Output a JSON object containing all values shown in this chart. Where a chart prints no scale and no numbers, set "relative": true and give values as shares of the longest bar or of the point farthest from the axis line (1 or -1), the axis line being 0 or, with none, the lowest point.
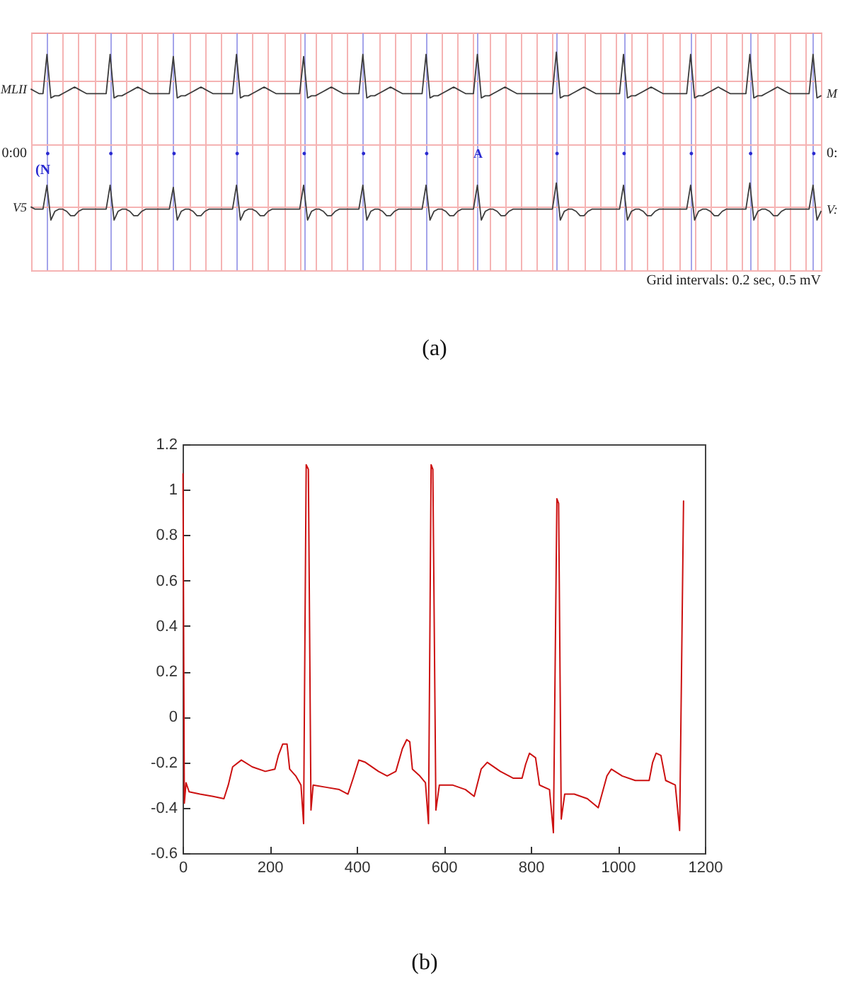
{
  "chart_data": [
    {
      "type": "line",
      "relative": true,
      "grid": true,
      "categories": [
        null,
        null,
        null,
        null,
        "•",
        null,
        null,
        null,
        null,
        null,
        null,
        null,
        null,
        null,
        null,
        null,
        null,
        null,
        null,
        null,
        "•",
        null,
        null,
        null,
        null,
        null,
        null,
        null,
        null,
        null,
        null,
        null,
        null,
        null,
        null,
        null,
        "•",
        null,
        null,
        null,
        null,
        null,
        null,
        null,
        null,
        null,
        null,
        null,
        null,
        null,
        null,
        null,
        "•",
        null,
        null,
        null,
        null,
        null,
        null,
        null,
        null,
        null,
        null,
        null,
        null,
        null,
        null,
        null,
        null,
        "•",
        null,
        null,
        null,
        null,
        null,
        null,
        null,
        null,
        null,
        null,
        null,
        null,
        null,
        null,
        "•",
        null,
        null,
        null,
        null,
        null,
        null,
        null,
        null,
        null,
        null,
        null,
        null,
        null,
        null,
        null,
        "•",
        null,
        null,
        null,
        null,
        null,
        null,
        null,
        null,
        null,
        null,
        null,
        null,
        "A",
        null,
        null,
        null,
        null,
        null,
        null,
        null,
        null,
        null,
        null,
        null,
        null,
        null,
        null,
        null,
        null,
        null,
        null,
        null,
        "•",
        null,
        null,
        null,
        null,
        null,
        null,
        null,
        null,
        null,
        null,
        null,
        null,
        null,
        null,
        null,
        null,
        "•",
        null,
        null,
        null,
        null,
        null,
        null,
        null,
        null,
        null,
        null,
        null,
        null,
        null,
        null,
        null,
        null,
        "•",
        null,
        null,
        null,
        null,
        null,
        null,
        null,
        null,
        null,
        null,
        null,
        null,
        null,
        null,
        "•",
        null,
        null,
        null,
        null,
        null,
        null,
        null,
        null,
        null,
        null,
        null,
        null,
        null,
        null,
        null,
        "•",
        null,
        null
      ],
      "series": [
        {
          "name": "MLII",
          "color": "#3c3c3c",
          "values": [
            0.83,
            0.82,
            0.81,
            0.81,
            0.99,
            0.79,
            0.8,
            0.8,
            0.81,
            0.82,
            0.83,
            0.84,
            0.83,
            0.82,
            0.81,
            0.81,
            0.81,
            0.81,
            0.81,
            0.81,
            0.99,
            0.79,
            0.8,
            0.8,
            0.81,
            0.82,
            0.83,
            0.84,
            0.83,
            0.82,
            0.81,
            0.81,
            0.81,
            0.81,
            0.81,
            0.81,
            0.98,
            0.79,
            0.8,
            0.8,
            0.81,
            0.82,
            0.83,
            0.84,
            0.83,
            0.82,
            0.81,
            0.81,
            0.81,
            0.81,
            0.81,
            0.81,
            0.99,
            0.79,
            0.8,
            0.8,
            0.81,
            0.82,
            0.83,
            0.84,
            0.83,
            0.82,
            0.81,
            0.81,
            0.81,
            0.81,
            0.81,
            0.81,
            0.81,
            0.98,
            0.79,
            0.8,
            0.8,
            0.81,
            0.82,
            0.83,
            0.84,
            0.83,
            0.82,
            0.81,
            0.81,
            0.81,
            0.81,
            0.81,
            0.99,
            0.79,
            0.8,
            0.8,
            0.81,
            0.82,
            0.83,
            0.84,
            0.83,
            0.82,
            0.81,
            0.81,
            0.81,
            0.81,
            0.81,
            0.81,
            0.99,
            0.79,
            0.8,
            0.8,
            0.81,
            0.82,
            0.83,
            0.84,
            0.83,
            0.82,
            0.81,
            0.81,
            0.81,
            0.99,
            0.79,
            0.8,
            0.8,
            0.81,
            0.82,
            0.83,
            0.84,
            0.83,
            0.82,
            0.81,
            0.81,
            0.81,
            0.81,
            0.81,
            0.81,
            0.81,
            0.81,
            0.81,
            0.81,
            1.0,
            0.79,
            0.8,
            0.8,
            0.81,
            0.82,
            0.83,
            0.84,
            0.83,
            0.82,
            0.81,
            0.81,
            0.81,
            0.81,
            0.81,
            0.81,
            0.81,
            0.99,
            0.79,
            0.8,
            0.8,
            0.81,
            0.82,
            0.83,
            0.84,
            0.83,
            0.82,
            0.81,
            0.81,
            0.81,
            0.81,
            0.81,
            0.81,
            0.81,
            0.99,
            0.79,
            0.8,
            0.8,
            0.81,
            0.82,
            0.83,
            0.84,
            0.83,
            0.82,
            0.81,
            0.81,
            0.81,
            0.81,
            0.81,
            0.99,
            0.79,
            0.8,
            0.8,
            0.81,
            0.82,
            0.83,
            0.84,
            0.83,
            0.82,
            0.81,
            0.81,
            0.81,
            0.81,
            0.81,
            0.81,
            0.99,
            0.79,
            0.8
          ]
        },
        {
          "name": "V5",
          "color": "#3c3c3c",
          "values": [
            0.29,
            0.28,
            0.28,
            0.28,
            0.39,
            0.23,
            0.27,
            0.28,
            0.28,
            0.27,
            0.25,
            0.25,
            0.27,
            0.28,
            0.28,
            0.28,
            0.28,
            0.28,
            0.28,
            0.28,
            0.39,
            0.23,
            0.27,
            0.28,
            0.28,
            0.27,
            0.25,
            0.25,
            0.27,
            0.28,
            0.28,
            0.28,
            0.28,
            0.28,
            0.28,
            0.28,
            0.38,
            0.23,
            0.27,
            0.28,
            0.28,
            0.27,
            0.25,
            0.25,
            0.27,
            0.28,
            0.28,
            0.28,
            0.28,
            0.28,
            0.28,
            0.28,
            0.39,
            0.23,
            0.27,
            0.28,
            0.28,
            0.27,
            0.25,
            0.25,
            0.27,
            0.28,
            0.28,
            0.28,
            0.28,
            0.28,
            0.28,
            0.28,
            0.28,
            0.39,
            0.23,
            0.27,
            0.28,
            0.28,
            0.27,
            0.25,
            0.25,
            0.27,
            0.28,
            0.28,
            0.28,
            0.28,
            0.28,
            0.28,
            0.39,
            0.23,
            0.27,
            0.28,
            0.28,
            0.27,
            0.25,
            0.25,
            0.27,
            0.28,
            0.28,
            0.28,
            0.28,
            0.28,
            0.28,
            0.28,
            0.39,
            0.23,
            0.27,
            0.28,
            0.28,
            0.27,
            0.25,
            0.25,
            0.27,
            0.28,
            0.28,
            0.28,
            0.28,
            0.39,
            0.23,
            0.27,
            0.28,
            0.28,
            0.27,
            0.25,
            0.25,
            0.27,
            0.28,
            0.28,
            0.28,
            0.28,
            0.28,
            0.28,
            0.28,
            0.28,
            0.28,
            0.28,
            0.28,
            0.4,
            0.23,
            0.27,
            0.28,
            0.28,
            0.27,
            0.25,
            0.25,
            0.27,
            0.28,
            0.28,
            0.28,
            0.28,
            0.28,
            0.28,
            0.28,
            0.28,
            0.39,
            0.23,
            0.27,
            0.28,
            0.28,
            0.27,
            0.25,
            0.25,
            0.27,
            0.28,
            0.28,
            0.28,
            0.28,
            0.28,
            0.28,
            0.28,
            0.28,
            0.39,
            0.23,
            0.27,
            0.28,
            0.28,
            0.27,
            0.25,
            0.25,
            0.27,
            0.28,
            0.28,
            0.28,
            0.28,
            0.28,
            0.28,
            0.4,
            0.23,
            0.27,
            0.28,
            0.28,
            0.27,
            0.25,
            0.25,
            0.27,
            0.28,
            0.28,
            0.28,
            0.28,
            0.28,
            0.28,
            0.28,
            0.39,
            0.23,
            0.27
          ]
        }
      ],
      "annotations": [
        "0:00",
        "(N",
        "0:",
        "M",
        "V:",
        "Grid intervals: 0.2 sec, 0.5 mV",
        "(a)"
      ]
    },
    {
      "type": "line",
      "color": "#cc1111",
      "xlim": [
        0,
        1200
      ],
      "xticks": [
        0,
        200,
        400,
        600,
        800,
        1000,
        1200
      ],
      "ylim": [
        -0.6,
        1.2
      ],
      "yticks": [
        -0.6,
        -0.4,
        -0.2,
        0,
        0.2,
        0.4,
        0.6,
        0.8,
        1,
        1.2
      ],
      "x": [
        1,
        4,
        8,
        15,
        40,
        70,
        95,
        105,
        115,
        135,
        160,
        190,
        212,
        220,
        230,
        240,
        246,
        260,
        272,
        278,
        284,
        289,
        295,
        300,
        330,
        360,
        380,
        392,
        405,
        420,
        450,
        470,
        490,
        505,
        515,
        522,
        528,
        545,
        558,
        565,
        571,
        575,
        582,
        590,
        620,
        650,
        670,
        686,
        700,
        730,
        760,
        780,
        788,
        797,
        811,
        820,
        843,
        852,
        860,
        864,
        870,
        878,
        900,
        930,
        955,
        975,
        985,
        1010,
        1040,
        1072,
        1080,
        1088,
        1099,
        1110,
        1132,
        1142,
        1151
      ],
      "values": [
        1.07,
        -0.38,
        -0.29,
        -0.33,
        -0.34,
        -0.35,
        -0.36,
        -0.3,
        -0.22,
        -0.19,
        -0.22,
        -0.24,
        -0.23,
        -0.17,
        -0.12,
        -0.12,
        -0.23,
        -0.26,
        -0.3,
        -0.47,
        1.11,
        1.09,
        -0.41,
        -0.3,
        -0.31,
        -0.32,
        -0.34,
        -0.27,
        -0.19,
        -0.2,
        -0.24,
        -0.26,
        -0.24,
        -0.14,
        -0.1,
        -0.11,
        -0.23,
        -0.26,
        -0.29,
        -0.47,
        1.11,
        1.09,
        -0.41,
        -0.3,
        -0.3,
        -0.32,
        -0.35,
        -0.23,
        -0.2,
        -0.24,
        -0.27,
        -0.27,
        -0.21,
        -0.16,
        -0.18,
        -0.3,
        -0.32,
        -0.51,
        0.96,
        0.94,
        -0.45,
        -0.34,
        -0.34,
        -0.36,
        -0.4,
        -0.26,
        -0.23,
        -0.26,
        -0.28,
        -0.28,
        -0.2,
        -0.16,
        -0.17,
        -0.28,
        -0.3,
        -0.5,
        0.95
      ],
      "annotations": [
        "(b)"
      ]
    }
  ]
}
